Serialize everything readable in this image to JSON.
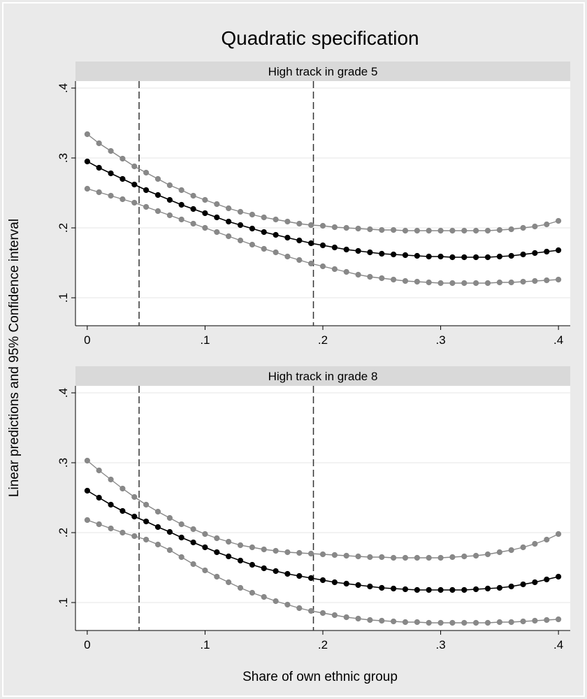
{
  "figure": {
    "title": "Quadratic specification",
    "xlabel": "Share of own ethnic group",
    "ylabel": "Linear predictions and 95% Confidence interval"
  },
  "chart_data": [
    {
      "type": "line",
      "panel_title": "High track in grade 5",
      "x": [
        0,
        0.01,
        0.02,
        0.03,
        0.04,
        0.05,
        0.06,
        0.07,
        0.08,
        0.09,
        0.1,
        0.11,
        0.12,
        0.13,
        0.14,
        0.15,
        0.16,
        0.17,
        0.18,
        0.19,
        0.2,
        0.21,
        0.22,
        0.23,
        0.24,
        0.25,
        0.26,
        0.27,
        0.28,
        0.29,
        0.3,
        0.31,
        0.32,
        0.33,
        0.34,
        0.35,
        0.36,
        0.37,
        0.38,
        0.39,
        0.4
      ],
      "series": [
        {
          "role": "upper",
          "color": "#888888",
          "values": [
            0.334,
            0.321,
            0.31,
            0.299,
            0.288,
            0.279,
            0.27,
            0.261,
            0.254,
            0.246,
            0.24,
            0.234,
            0.228,
            0.223,
            0.219,
            0.215,
            0.212,
            0.209,
            0.206,
            0.204,
            0.203,
            0.201,
            0.2,
            0.199,
            0.198,
            0.197,
            0.197,
            0.196,
            0.196,
            0.196,
            0.196,
            0.196,
            0.196,
            0.196,
            0.196,
            0.197,
            0.198,
            0.2,
            0.202,
            0.205,
            0.21
          ]
        },
        {
          "role": "prediction",
          "color": "#000000",
          "values": [
            0.295,
            0.286,
            0.278,
            0.27,
            0.262,
            0.254,
            0.247,
            0.24,
            0.233,
            0.227,
            0.221,
            0.215,
            0.209,
            0.204,
            0.199,
            0.194,
            0.19,
            0.186,
            0.182,
            0.178,
            0.175,
            0.172,
            0.169,
            0.167,
            0.165,
            0.163,
            0.162,
            0.161,
            0.16,
            0.159,
            0.159,
            0.158,
            0.158,
            0.158,
            0.158,
            0.159,
            0.16,
            0.162,
            0.164,
            0.166,
            0.168
          ]
        },
        {
          "role": "lower",
          "color": "#888888",
          "values": [
            0.256,
            0.251,
            0.246,
            0.241,
            0.236,
            0.23,
            0.224,
            0.218,
            0.212,
            0.206,
            0.2,
            0.194,
            0.188,
            0.182,
            0.176,
            0.17,
            0.165,
            0.159,
            0.154,
            0.149,
            0.145,
            0.141,
            0.137,
            0.133,
            0.13,
            0.128,
            0.126,
            0.124,
            0.123,
            0.122,
            0.121,
            0.121,
            0.121,
            0.121,
            0.121,
            0.122,
            0.122,
            0.123,
            0.124,
            0.125,
            0.126
          ]
        }
      ],
      "vlines": [
        0.044,
        0.192
      ],
      "xlim": [
        -0.01,
        0.41
      ],
      "ylim": [
        0.06,
        0.41
      ],
      "xticks": [
        0,
        0.1,
        0.2,
        0.3,
        0.4
      ],
      "xtick_labels": [
        "0",
        ".1",
        ".2",
        ".3",
        ".4"
      ],
      "yticks": [
        0.1,
        0.2,
        0.3,
        0.4
      ],
      "ytick_labels": [
        ".1",
        ".2",
        ".3",
        ".4"
      ],
      "grid": true
    },
    {
      "type": "line",
      "panel_title": "High track in grade 8",
      "x": [
        0,
        0.01,
        0.02,
        0.03,
        0.04,
        0.05,
        0.06,
        0.07,
        0.08,
        0.09,
        0.1,
        0.11,
        0.12,
        0.13,
        0.14,
        0.15,
        0.16,
        0.17,
        0.18,
        0.19,
        0.2,
        0.21,
        0.22,
        0.23,
        0.24,
        0.25,
        0.26,
        0.27,
        0.28,
        0.29,
        0.3,
        0.31,
        0.32,
        0.33,
        0.34,
        0.35,
        0.36,
        0.37,
        0.38,
        0.39,
        0.4
      ],
      "series": [
        {
          "role": "upper",
          "color": "#888888",
          "values": [
            0.303,
            0.289,
            0.276,
            0.263,
            0.251,
            0.24,
            0.23,
            0.221,
            0.212,
            0.205,
            0.198,
            0.192,
            0.187,
            0.182,
            0.179,
            0.176,
            0.174,
            0.172,
            0.171,
            0.17,
            0.169,
            0.168,
            0.167,
            0.166,
            0.165,
            0.165,
            0.164,
            0.164,
            0.164,
            0.164,
            0.164,
            0.165,
            0.166,
            0.167,
            0.169,
            0.172,
            0.175,
            0.179,
            0.184,
            0.19,
            0.198
          ]
        },
        {
          "role": "prediction",
          "color": "#000000",
          "values": [
            0.26,
            0.25,
            0.24,
            0.231,
            0.223,
            0.216,
            0.208,
            0.201,
            0.193,
            0.186,
            0.179,
            0.172,
            0.166,
            0.16,
            0.154,
            0.149,
            0.145,
            0.141,
            0.138,
            0.135,
            0.132,
            0.129,
            0.127,
            0.125,
            0.123,
            0.121,
            0.12,
            0.119,
            0.118,
            0.118,
            0.118,
            0.118,
            0.118,
            0.119,
            0.12,
            0.121,
            0.123,
            0.126,
            0.129,
            0.133,
            0.137
          ]
        },
        {
          "role": "lower",
          "color": "#888888",
          "values": [
            0.218,
            0.212,
            0.206,
            0.2,
            0.195,
            0.19,
            0.183,
            0.175,
            0.165,
            0.155,
            0.146,
            0.137,
            0.129,
            0.121,
            0.114,
            0.108,
            0.102,
            0.097,
            0.092,
            0.088,
            0.085,
            0.082,
            0.079,
            0.077,
            0.075,
            0.074,
            0.073,
            0.072,
            0.072,
            0.071,
            0.071,
            0.071,
            0.071,
            0.071,
            0.071,
            0.072,
            0.072,
            0.073,
            0.074,
            0.075,
            0.076
          ]
        }
      ],
      "vlines": [
        0.044,
        0.192
      ],
      "xlim": [
        -0.01,
        0.41
      ],
      "ylim": [
        0.06,
        0.41
      ],
      "xticks": [
        0,
        0.1,
        0.2,
        0.3,
        0.4
      ],
      "xtick_labels": [
        "0",
        ".1",
        ".2",
        ".3",
        ".4"
      ],
      "yticks": [
        0.1,
        0.2,
        0.3,
        0.4
      ],
      "ytick_labels": [
        ".1",
        ".2",
        ".3",
        ".4"
      ],
      "grid": true
    }
  ]
}
